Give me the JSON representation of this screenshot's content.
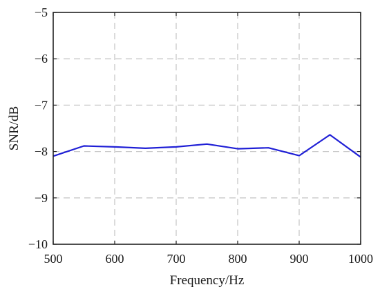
{
  "chart_data": {
    "type": "line",
    "title": "",
    "xlabel": "Frequency/Hz",
    "ylabel": "SNR/dB",
    "xlim": [
      500,
      1000
    ],
    "ylim": [
      -10,
      -5
    ],
    "xticks": [
      500,
      600,
      700,
      800,
      900,
      1000
    ],
    "yticks": [
      -5,
      -6,
      -7,
      -8,
      -9,
      -10
    ],
    "xtick_labels": [
      "500",
      "600",
      "700",
      "800",
      "900",
      "1000"
    ],
    "ytick_labels": [
      "−5",
      "−6",
      "−7",
      "−8",
      "−9",
      "−10"
    ],
    "grid": true,
    "series": [
      {
        "color": "#1f1fd6",
        "x": [
          500,
          550,
          600,
          650,
          700,
          750,
          800,
          850,
          900,
          950,
          1000
        ],
        "y": [
          -8.1,
          -7.88,
          -7.9,
          -7.93,
          -7.9,
          -7.84,
          -7.94,
          -7.92,
          -8.09,
          -7.64,
          -8.12
        ]
      }
    ]
  }
}
